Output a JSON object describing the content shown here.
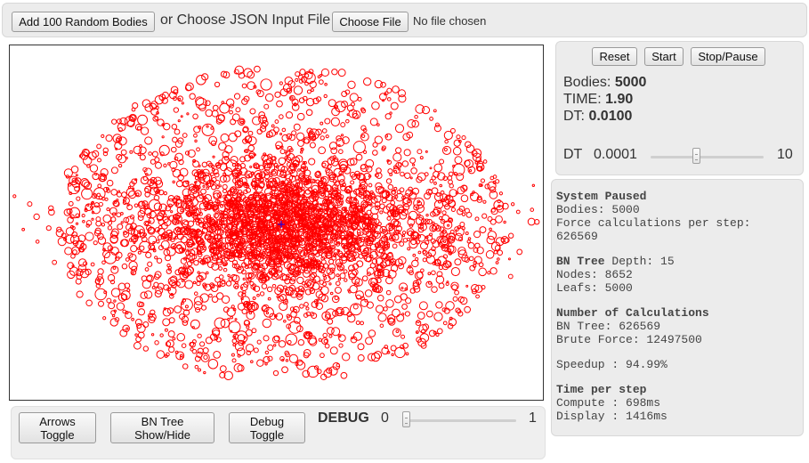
{
  "top": {
    "add_button": "Add 100 Random Bodies",
    "or_text": "or Choose JSON Input File",
    "file_button": "Choose File",
    "file_status": "No file chosen"
  },
  "controls": {
    "reset": "Reset",
    "start": "Start",
    "stop_pause": "Stop/Pause"
  },
  "stats": {
    "bodies_label": "Bodies:",
    "bodies_value": "5000",
    "time_label": "TIME:",
    "time_value": "1.90",
    "dt_label": "DT:",
    "dt_value": "0.0100"
  },
  "dt_slider": {
    "label": "DT",
    "min_label": "0.0001",
    "max_label": "10",
    "position": 0.4
  },
  "info": {
    "status_title": "System Paused",
    "bodies_line": "Bodies: 5000",
    "force_line1": "Force calculations per step:",
    "force_line2": "626569",
    "bn_title": "BN Tree",
    "bn_depth": " Depth: 15",
    "nodes_line": "Nodes: 8652",
    "leafs_line": "Leafs: 5000",
    "calc_title": "Number of Calculations",
    "bn_calc": "BN Tree: 626569",
    "brute_calc": "Brute Force: 12497500",
    "speedup": "Speedup : 94.99%",
    "time_title": "Time per step",
    "compute": "Compute : 698ms",
    "display": "Display : 1416ms"
  },
  "bottom": {
    "arrows_l1": "Arrows",
    "arrows_l2": "Toggle",
    "bn_l1": "BN Tree",
    "bn_l2": "Show/Hide",
    "debug_l1": "Debug",
    "debug_l2": "Toggle",
    "debug_label": "DEBUG",
    "debug_min": "0",
    "debug_max": "1",
    "debug_position": 0
  },
  "colors": {
    "body_stroke": "#ff0000",
    "center_marker": "#0000ff"
  },
  "icons": {
    "center_marker": "plus-marker-icon"
  }
}
